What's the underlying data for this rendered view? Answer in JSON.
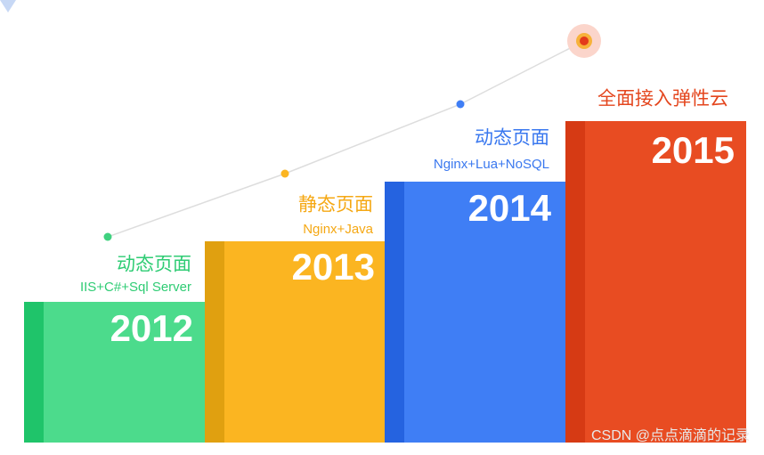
{
  "steps": [
    {
      "title": "动态页面",
      "subtitle": "IIS+C#+Sql Server",
      "year": "2012"
    },
    {
      "title": "静态页面",
      "subtitle": "Nginx+Java",
      "year": "2013"
    },
    {
      "title": "动态页面",
      "subtitle": "Nginx+Lua+NoSQL",
      "year": "2014"
    },
    {
      "title": "全面接入弹性云",
      "year": "2015"
    }
  ],
  "watermark": "CSDN @点点滴滴的记录"
}
